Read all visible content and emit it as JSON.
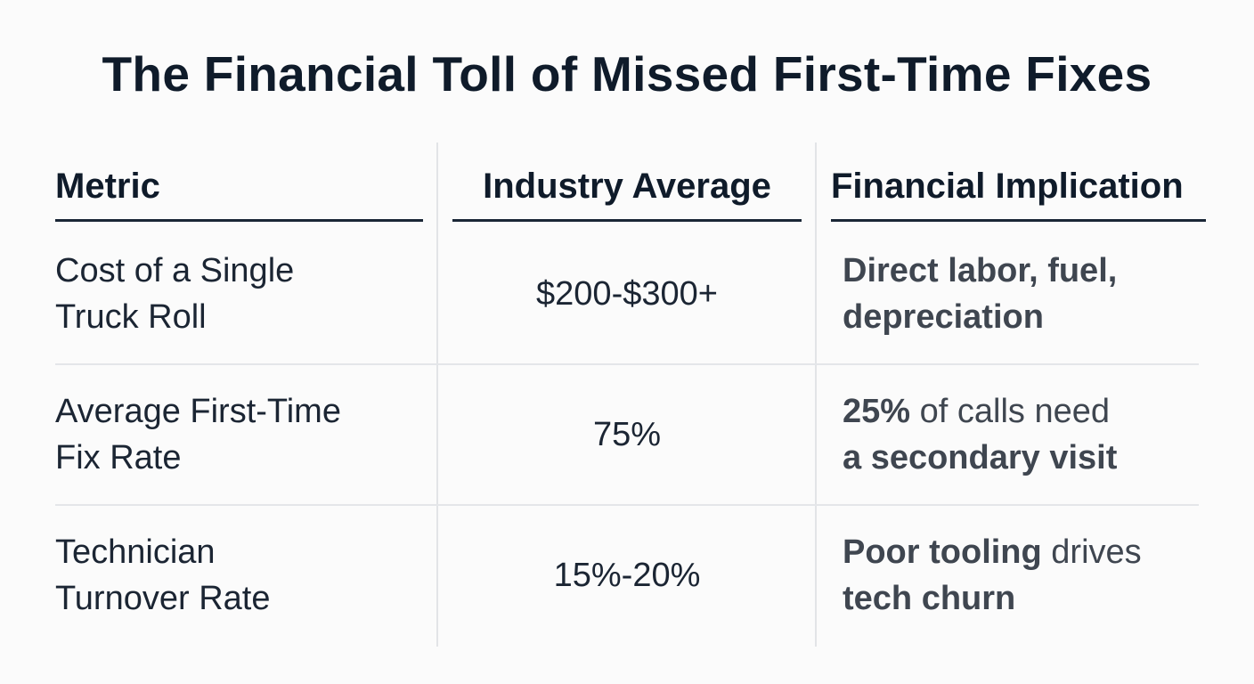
{
  "title": "The Financial Toll of Missed First-Time Fixes",
  "table": {
    "headers": [
      "Metric",
      "Industry Average",
      "Financial Implication"
    ],
    "rows": [
      {
        "metric": [
          "Cost of a Single",
          "Truck Roll"
        ],
        "average": "$200-$300+",
        "implication": [
          [
            {
              "text": "Direct labor, fuel,",
              "bold": true
            }
          ],
          [
            {
              "text": "depreciation",
              "bold": true
            }
          ]
        ]
      },
      {
        "metric": [
          "Average First-Time",
          "Fix Rate"
        ],
        "average": "75%",
        "implication": [
          [
            {
              "text": "25%",
              "bold": true
            },
            {
              "text": " of calls need",
              "bold": false
            }
          ],
          [
            {
              "text": "a secondary visit",
              "bold": true
            }
          ]
        ]
      },
      {
        "metric": [
          "Technician",
          "Turnover Rate"
        ],
        "average": "15%-20%",
        "implication": [
          [
            {
              "text": "Poor tooling",
              "bold": true
            },
            {
              "text": " drives",
              "bold": false
            }
          ],
          [
            {
              "text": "tech churn",
              "bold": true
            }
          ]
        ]
      }
    ]
  }
}
